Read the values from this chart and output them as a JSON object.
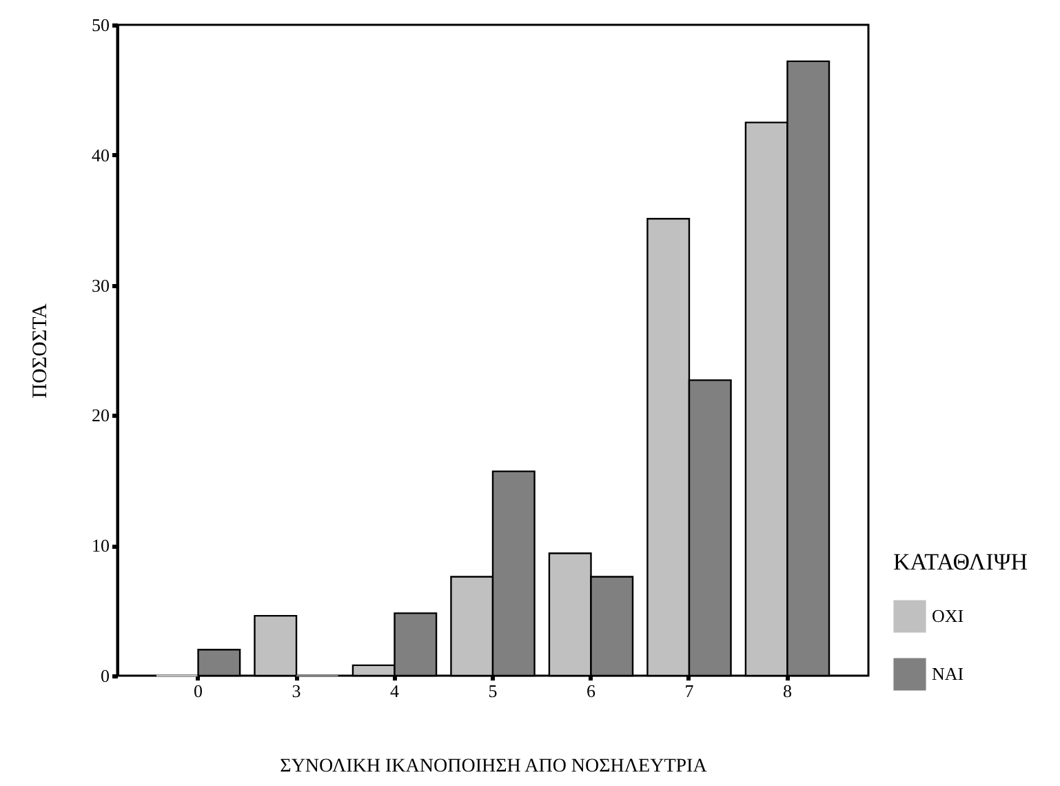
{
  "chart_data": {
    "type": "bar",
    "xlabel": "ΣΥΝΟΛΙΚΗ ΙΚΑΝΟΠΟΙΗΣΗ ΑΠΟ ΝΟΣΗΛΕΥΤΡΙΑ",
    "ylabel": "ΠΟΣΟΣΤΑ",
    "legend_title": "ΚΑΤΑΘΛΙΨΗ",
    "categories": [
      "0",
      "3",
      "4",
      "5",
      "6",
      "7",
      "8"
    ],
    "series": [
      {
        "name": "ΟΧΙ",
        "color": "#c0c0c0",
        "values": [
          0,
          4.6,
          0.8,
          7.6,
          9.4,
          35.1,
          42.5
        ]
      },
      {
        "name": "ΝΑΙ",
        "color": "#808080",
        "values": [
          2.0,
          0,
          4.8,
          15.7,
          7.6,
          22.7,
          47.2
        ]
      }
    ],
    "ylim": [
      0,
      50
    ],
    "yticks": [
      0,
      10,
      20,
      30,
      40,
      50
    ],
    "grid": false,
    "legend": "right"
  }
}
